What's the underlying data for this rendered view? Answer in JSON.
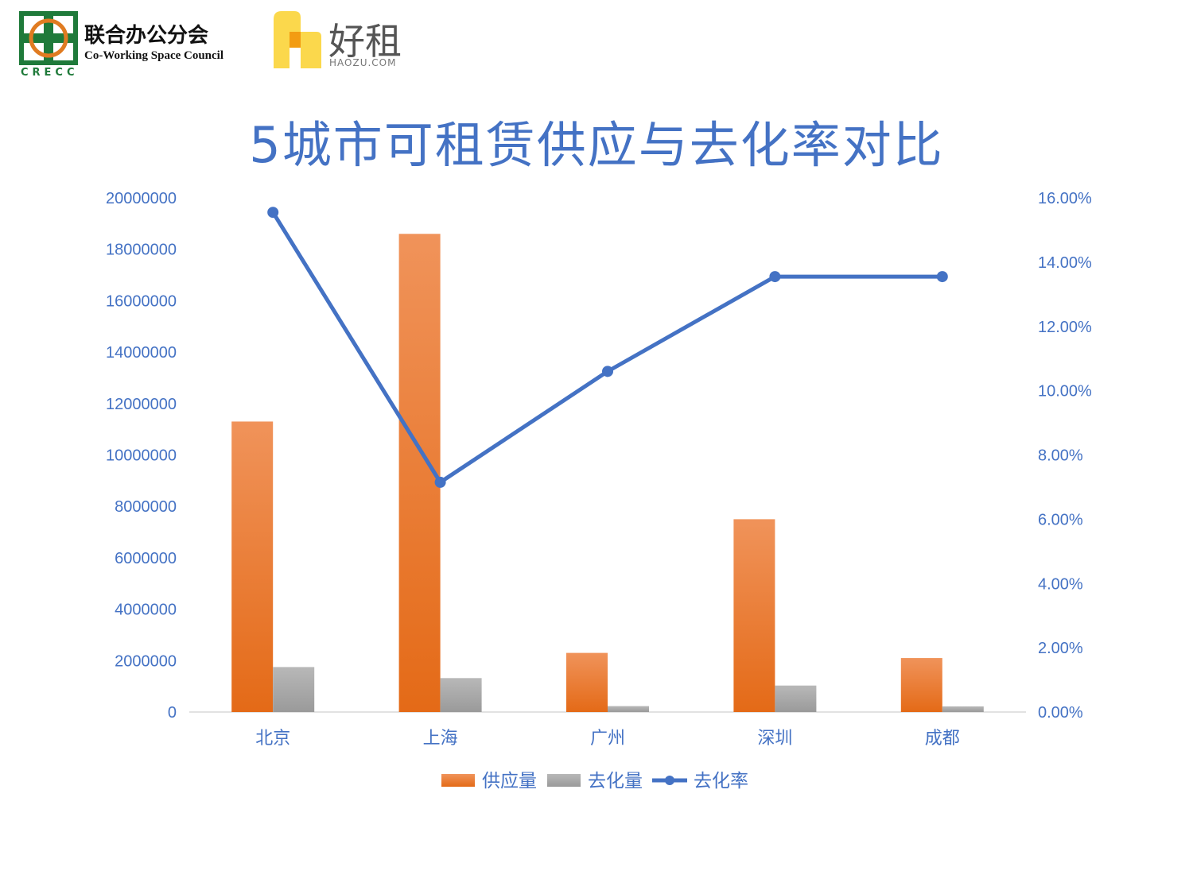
{
  "logos": {
    "crecc_cn": "联合办公分会",
    "crecc_en": "Co-Working Space Council",
    "crecc_abbr": "CRECC",
    "haozu_cn": "好租",
    "haozu_en": "HAOZU.COM"
  },
  "colors": {
    "supply": "#ed7d31",
    "absorption": "#a5a5a5",
    "rate": "#4472c4",
    "text": "#4472c4"
  },
  "chart_data": {
    "type": "bar",
    "title": "5城市可租赁供应与去化率对比",
    "categories": [
      "北京",
      "上海",
      "广州",
      "深圳",
      "成都"
    ],
    "series": [
      {
        "name": "供应量",
        "kind": "bar",
        "axis": "left",
        "values": [
          11300000,
          18600000,
          2300000,
          7500000,
          2100000
        ]
      },
      {
        "name": "去化量",
        "kind": "bar",
        "axis": "left",
        "values": [
          1750000,
          1320000,
          230000,
          1030000,
          220000
        ]
      },
      {
        "name": "去化率",
        "kind": "line",
        "axis": "right",
        "values": [
          0.1555,
          0.0715,
          0.106,
          0.1355,
          0.1355
        ]
      }
    ],
    "y_left": {
      "min": 0,
      "max": 20000000,
      "step": 2000000,
      "ticks": [
        "0",
        "2000000",
        "4000000",
        "6000000",
        "8000000",
        "10000000",
        "12000000",
        "14000000",
        "16000000",
        "18000000",
        "20000000"
      ]
    },
    "y_right": {
      "min": 0,
      "max": 0.16,
      "step": 0.02,
      "ticks": [
        "0.00%",
        "2.00%",
        "4.00%",
        "6.00%",
        "8.00%",
        "10.00%",
        "12.00%",
        "14.00%",
        "16.00%"
      ]
    },
    "legend_position": "bottom",
    "grid": false
  }
}
